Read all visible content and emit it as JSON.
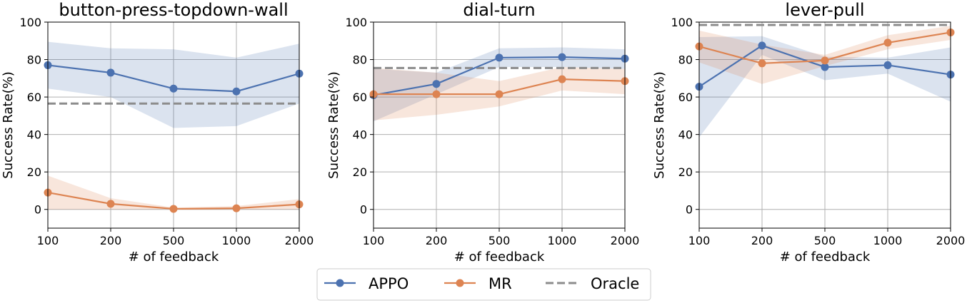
{
  "colors": {
    "appo": "#4c72b0",
    "mr": "#dd8452",
    "oracle": "#8c8c8c",
    "grid": "#b0b0b0"
  },
  "legend": {
    "entries": [
      {
        "key": "appo",
        "label": "APPO",
        "style": "line-marker"
      },
      {
        "key": "mr",
        "label": "MR",
        "style": "line-marker"
      },
      {
        "key": "oracle",
        "label": "Oracle",
        "style": "dashed"
      }
    ],
    "placement": "bottom-center"
  },
  "chart_data": [
    {
      "type": "line",
      "title": "button-press-topdown-wall",
      "xlabel": "# of feedback",
      "ylabel": "Success Rate(%)",
      "categories": [
        "100",
        "200",
        "500",
        "1000",
        "2000"
      ],
      "ylim": [
        -10,
        100
      ],
      "yticks": [
        0,
        20,
        40,
        60,
        80,
        100
      ],
      "grid": true,
      "series": [
        {
          "name": "APPO",
          "key": "appo",
          "values": [
            77,
            73,
            64.5,
            63,
            72.5
          ],
          "lower": [
            64.5,
            60,
            43.5,
            44.5,
            56.5
          ],
          "upper": [
            89.5,
            86,
            85.5,
            81,
            88.5
          ]
        },
        {
          "name": "MR",
          "key": "mr",
          "values": [
            9,
            3,
            0.3,
            0.6,
            2.7
          ],
          "lower": [
            0,
            0,
            0,
            0,
            0
          ],
          "upper": [
            18,
            6,
            1,
            1.8,
            5.5
          ]
        }
      ],
      "oracle": 56.5
    },
    {
      "type": "line",
      "title": "dial-turn",
      "xlabel": "# of feedback",
      "ylabel": "Success Rate(%)",
      "categories": [
        "100",
        "200",
        "500",
        "1000",
        "2000"
      ],
      "ylim": [
        -10,
        100
      ],
      "yticks": [
        0,
        20,
        40,
        60,
        80,
        100
      ],
      "grid": true,
      "series": [
        {
          "name": "APPO",
          "key": "appo",
          "values": [
            61,
            67,
            81,
            81.3,
            80.5
          ],
          "lower": [
            47,
            61.5,
            76,
            76,
            75
          ],
          "upper": [
            75,
            73,
            86,
            86.5,
            85.5
          ]
        },
        {
          "name": "MR",
          "key": "mr",
          "values": [
            61.5,
            61.5,
            61.5,
            69.5,
            68.5
          ],
          "lower": [
            47.5,
            50.5,
            55,
            63.5,
            61.5
          ],
          "upper": [
            75.5,
            73,
            68.5,
            76,
            75
          ]
        }
      ],
      "oracle": 75.5
    },
    {
      "type": "line",
      "title": "lever-pull",
      "xlabel": "# of feedback",
      "ylabel": "Success Rate(%)",
      "categories": [
        "100",
        "200",
        "500",
        "1000",
        "2000"
      ],
      "ylim": [
        -10,
        100
      ],
      "yticks": [
        0,
        20,
        40,
        60,
        80,
        100
      ],
      "grid": true,
      "series": [
        {
          "name": "APPO",
          "key": "appo",
          "values": [
            65.5,
            87.5,
            76,
            77,
            72
          ],
          "lower": [
            38.5,
            82.5,
            69,
            72.5,
            57.5
          ],
          "upper": [
            92,
            92.5,
            81.5,
            81,
            86.5
          ]
        },
        {
          "name": "MR",
          "key": "mr",
          "values": [
            87,
            78,
            79.5,
            89,
            94.5
          ],
          "lower": [
            78.5,
            67,
            76.5,
            85.5,
            90.5
          ],
          "upper": [
            95.5,
            88,
            82.5,
            93,
            98
          ]
        }
      ],
      "oracle": 98.5
    }
  ]
}
